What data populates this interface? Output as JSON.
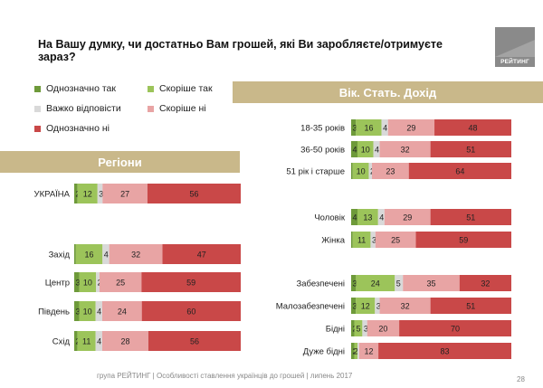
{
  "title": "На Вашу думку, чи достатньо Вам грошей, які Ви заробляєте/отримуєте зараз?",
  "logo_text": "РЕЙТИНГ",
  "legend": [
    {
      "label": "Однозначно так",
      "color": "#6e9a3a"
    },
    {
      "label": "Скоріше так",
      "color": "#9cc45a"
    },
    {
      "label": "Важко відповісти",
      "color": "#d9d9d9"
    },
    {
      "label": "Скоріше ні",
      "color": "#e8a4a4"
    },
    {
      "label": "Однозначно ні",
      "color": "#c94848"
    }
  ],
  "banners": {
    "left": "Регіони",
    "right": "Вік. Стать. Дохід"
  },
  "footer": "група РЕЙТИНГ  |  Особливості ставлення українців до грошей  |  липень 2017",
  "page_number": "28",
  "chart_data": [
    {
      "type": "bar",
      "orientation": "horizontal",
      "stacked": true,
      "panel": "Регіони",
      "categories": [
        "УКРАЇНА",
        "Захід",
        "Центр",
        "Південь",
        "Схід"
      ],
      "series": [
        {
          "name": "Однозначно так",
          "values": [
            2,
            1,
            3,
            3,
            2
          ]
        },
        {
          "name": "Скоріше так",
          "values": [
            12,
            16,
            10,
            10,
            11
          ]
        },
        {
          "name": "Важко відповісти",
          "values": [
            3,
            4,
            2,
            4,
            4
          ]
        },
        {
          "name": "Скоріше ні",
          "values": [
            27,
            32,
            25,
            24,
            28
          ]
        },
        {
          "name": "Однозначно ні",
          "values": [
            56,
            47,
            59,
            60,
            56
          ]
        }
      ]
    },
    {
      "type": "bar",
      "orientation": "horizontal",
      "stacked": true,
      "panel": "Вік. Стать. Дохід",
      "categories": [
        "18-35 років",
        "36-50 років",
        "51 рік і старше",
        "Чоловік",
        "Жінка",
        "Забезпечені",
        "Малозабезпечені",
        "Бідні",
        "Дуже бідні"
      ],
      "series": [
        {
          "name": "Однозначно так",
          "values": [
            3,
            4,
            1,
            4,
            1,
            3,
            3,
            2,
            2
          ]
        },
        {
          "name": "Скоріше так",
          "values": [
            16,
            10,
            10,
            13,
            11,
            24,
            12,
            5,
            2
          ]
        },
        {
          "name": "Важко відповісти",
          "values": [
            4,
            4,
            2,
            4,
            3,
            5,
            3,
            3,
            1
          ]
        },
        {
          "name": "Скоріше ні",
          "values": [
            29,
            32,
            23,
            29,
            25,
            35,
            32,
            20,
            12
          ]
        },
        {
          "name": "Однозначно ні",
          "values": [
            48,
            51,
            64,
            51,
            59,
            32,
            51,
            70,
            83
          ]
        }
      ]
    }
  ]
}
